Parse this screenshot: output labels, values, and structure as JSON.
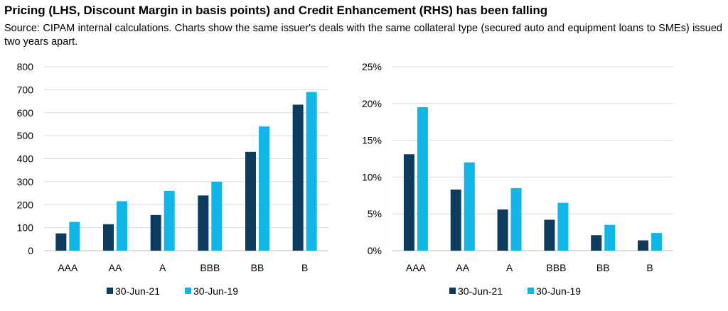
{
  "title": "Pricing (LHS, Discount Margin in basis points) and Credit Enhancement (RHS) has been falling",
  "subtitle": "Source: CIPAM internal calculations. Charts show the same issuer's deals with the same collateral type (secured auto and equipment loans to SMEs) issued two years apart.",
  "colors": {
    "series_2021": "#0c3b5e",
    "series_2019": "#11b6e8",
    "grid": "#d9d9d9"
  },
  "chart_data": [
    {
      "type": "bar",
      "title": "",
      "categories": [
        "AAA",
        "AA",
        "A",
        "BBB",
        "BB",
        "B"
      ],
      "series": [
        {
          "name": "30-Jun-21",
          "values": [
            75,
            115,
            155,
            240,
            430,
            635
          ]
        },
        {
          "name": "30-Jun-19",
          "values": [
            125,
            215,
            260,
            300,
            540,
            690
          ]
        }
      ],
      "ylim": [
        0,
        800
      ],
      "yticks": [
        0,
        100,
        200,
        300,
        400,
        500,
        600,
        700,
        800
      ],
      "ytick_labels": [
        "0",
        "100",
        "200",
        "300",
        "400",
        "500",
        "600",
        "700",
        "800"
      ],
      "grid": true,
      "legend": "bottom"
    },
    {
      "type": "bar",
      "title": "",
      "categories": [
        "AAA",
        "AA",
        "A",
        "BBB",
        "BB",
        "B"
      ],
      "series": [
        {
          "name": "30-Jun-21",
          "values": [
            13.1,
            8.3,
            5.6,
            4.2,
            2.1,
            1.4
          ]
        },
        {
          "name": "30-Jun-19",
          "values": [
            19.5,
            12.0,
            8.5,
            6.5,
            3.5,
            2.4
          ]
        }
      ],
      "ylim": [
        0,
        25
      ],
      "yticks": [
        0,
        5,
        10,
        15,
        20,
        25
      ],
      "ytick_labels": [
        "0%",
        "5%",
        "10%",
        "15%",
        "20%",
        "25%"
      ],
      "grid": true,
      "legend": "bottom"
    }
  ]
}
